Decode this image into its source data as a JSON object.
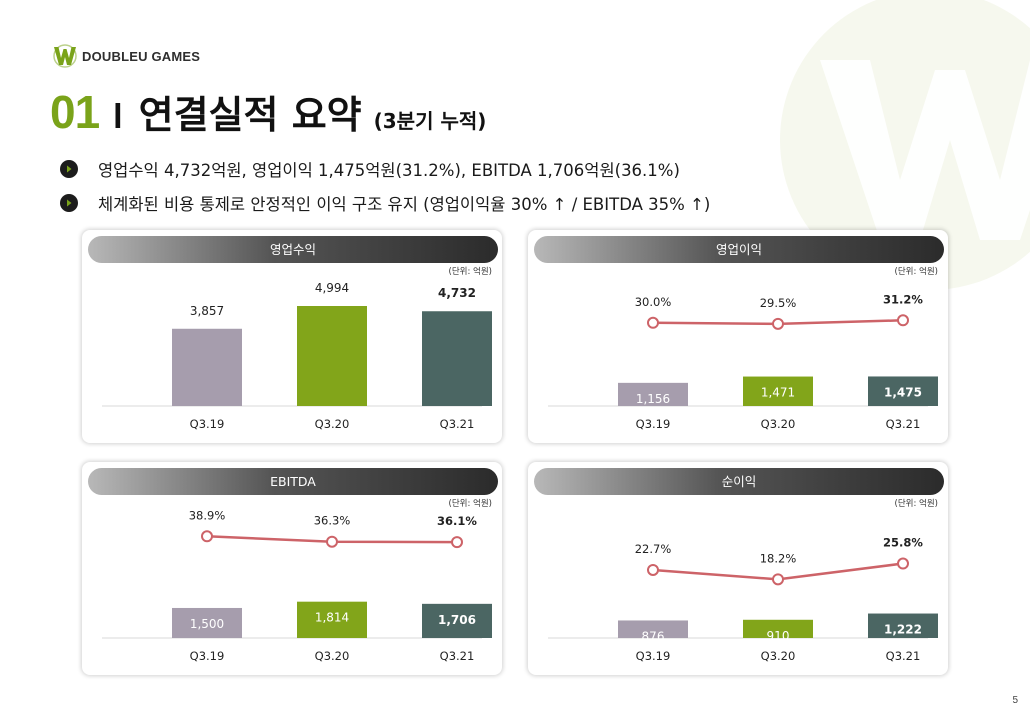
{
  "logo": {
    "text": "DOUBLEU GAMES"
  },
  "title": {
    "number": "01",
    "separator": "l",
    "main": "연결실적 요약",
    "sub": "(3분기 누적)"
  },
  "bullets": [
    "영업수익 4,732억원, 영업이익 1,475억원(31.2%), EBITDA 1,706억원(36.1%)",
    "체계화된 비용 통제로 안정적인 이익 구조 유지 (영업이익율 30% ↑ / EBITDA 35% ↑)"
  ],
  "colors": {
    "accent": "#7aa31a",
    "bar_q319": "#a69dad",
    "bar_q320": "#82a51a",
    "bar_q321": "#4b6663",
    "line": "#cd6368"
  },
  "page_number": "5",
  "chart_data": [
    {
      "type": "bar",
      "title": "영업수익",
      "unit": "(단위: 억원)",
      "categories": [
        "Q3.19",
        "Q3.20",
        "Q3.21"
      ],
      "values": [
        3857,
        4994,
        4732
      ],
      "value_labels": [
        "3,857",
        "4,994",
        "4,732"
      ],
      "labels_inside": false
    },
    {
      "type": "bar",
      "title": "영업이익",
      "unit": "(단위: 억원)",
      "categories": [
        "Q3.19",
        "Q3.20",
        "Q3.21"
      ],
      "values": [
        1156,
        1471,
        1475
      ],
      "value_labels": [
        "1,156",
        "1,471",
        "1,475"
      ],
      "labels_inside": true,
      "margin": [
        30.0,
        29.5,
        31.2
      ],
      "margin_labels": [
        "30.0%",
        "29.5%",
        "31.2%"
      ]
    },
    {
      "type": "bar",
      "title": "EBITDA",
      "unit": "(단위: 억원)",
      "categories": [
        "Q3.19",
        "Q3.20",
        "Q3.21"
      ],
      "values": [
        1500,
        1814,
        1706
      ],
      "value_labels": [
        "1,500",
        "1,814",
        "1,706"
      ],
      "labels_inside": true,
      "margin": [
        38.9,
        36.3,
        36.1
      ],
      "margin_labels": [
        "38.9%",
        "36.3%",
        "36.1%"
      ]
    },
    {
      "type": "bar",
      "title": "순이익",
      "unit": "(단위: 억원)",
      "categories": [
        "Q3.19",
        "Q3.20",
        "Q3.21"
      ],
      "values": [
        876,
        910,
        1222
      ],
      "value_labels": [
        "876",
        "910",
        "1,222"
      ],
      "labels_inside": true,
      "margin": [
        22.7,
        18.2,
        25.8
      ],
      "margin_labels": [
        "22.7%",
        "18.2%",
        "25.8%"
      ]
    }
  ]
}
